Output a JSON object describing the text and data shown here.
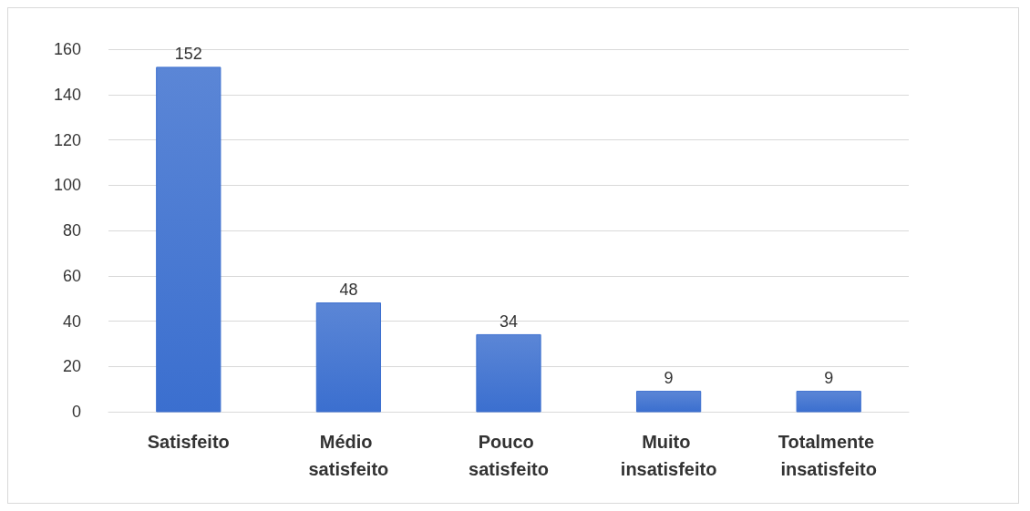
{
  "chart_data": {
    "type": "bar",
    "categories": [
      "Satisfeito",
      "Médio satisfeito",
      "Pouco satisfeito",
      "Muito insatisfeito",
      "Totalmente insatisfeito"
    ],
    "values": [
      152,
      48,
      34,
      9,
      9
    ],
    "color": "#3b6fcf",
    "ylim": [
      0,
      160
    ],
    "yticks": [
      0,
      20,
      40,
      60,
      80,
      100,
      120,
      140,
      160
    ],
    "grid": "y",
    "data_labels": true
  }
}
